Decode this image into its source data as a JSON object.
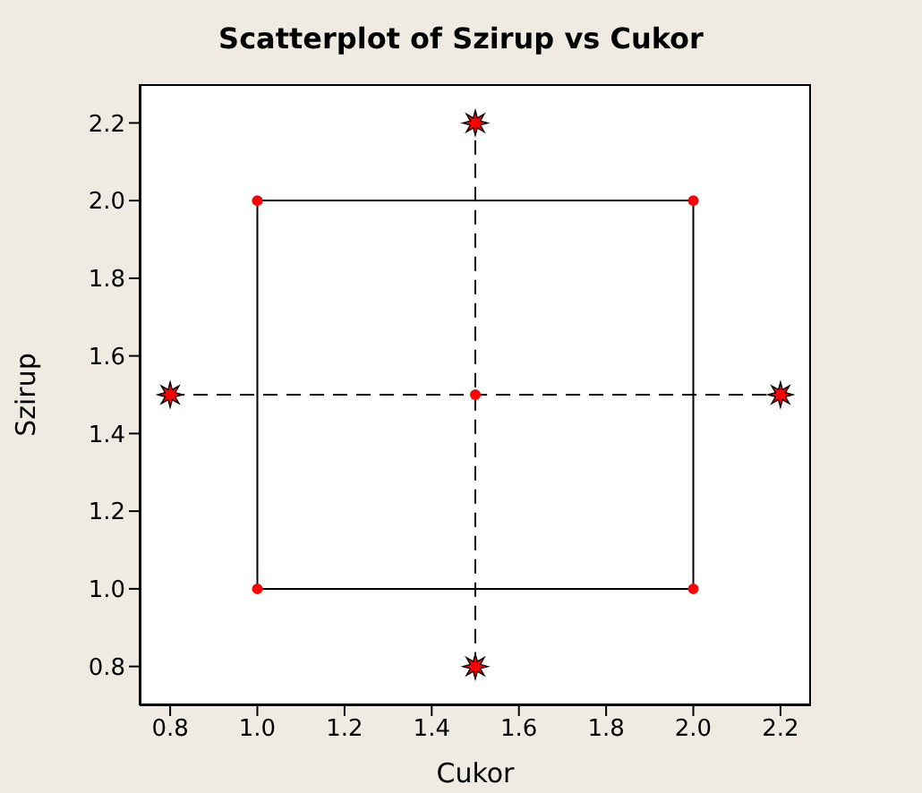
{
  "chart_data": {
    "type": "scatter",
    "title": "Scatterplot of Szirup vs Cukor",
    "xlabel": "Cukor",
    "ylabel": "Szirup",
    "xlim": [
      0.73,
      2.27
    ],
    "ylim": [
      0.7,
      2.3
    ],
    "xticks": [
      {
        "value": 0.8,
        "label": "0.8"
      },
      {
        "value": 1.0,
        "label": "1.0"
      },
      {
        "value": 1.2,
        "label": "1.2"
      },
      {
        "value": 1.4,
        "label": "1.4"
      },
      {
        "value": 1.6,
        "label": "1.6"
      },
      {
        "value": 1.8,
        "label": "1.8"
      },
      {
        "value": 2.0,
        "label": "2.0"
      },
      {
        "value": 2.2,
        "label": "2.2"
      }
    ],
    "yticks": [
      {
        "value": 0.8,
        "label": "0.8"
      },
      {
        "value": 1.0,
        "label": "1.0"
      },
      {
        "value": 1.2,
        "label": "1.2"
      },
      {
        "value": 1.4,
        "label": "1.4"
      },
      {
        "value": 1.6,
        "label": "1.6"
      },
      {
        "value": 1.8,
        "label": "1.8"
      },
      {
        "value": 2.0,
        "label": "2.0"
      },
      {
        "value": 2.2,
        "label": "2.2"
      }
    ],
    "grid": false,
    "legend": false,
    "series": [
      {
        "type": "line",
        "color": "#000000",
        "line_style": "solid",
        "marker": "none",
        "x": [
          1,
          2
        ],
        "values": [
          1,
          1
        ]
      },
      {
        "type": "line",
        "color": "#000000",
        "line_style": "solid",
        "marker": "none",
        "x": [
          2,
          2
        ],
        "values": [
          1,
          2
        ]
      },
      {
        "type": "line",
        "color": "#000000",
        "line_style": "solid",
        "marker": "none",
        "x": [
          1,
          2
        ],
        "values": [
          2,
          2
        ]
      },
      {
        "type": "line",
        "color": "#000000",
        "line_style": "solid",
        "marker": "none",
        "x": [
          1,
          1
        ],
        "values": [
          1,
          2
        ]
      },
      {
        "type": "line",
        "color": "#000000",
        "line_style": "dashed",
        "marker": "none",
        "x": [
          0.8,
          2.2
        ],
        "values": [
          1.5,
          1.5
        ]
      },
      {
        "type": "line",
        "color": "#000000",
        "line_style": "dashed",
        "marker": "none",
        "x": [
          1.5,
          1.5
        ],
        "values": [
          0.8,
          2.2
        ]
      },
      {
        "color": "#ff0000",
        "marker": "circle",
        "x": [
          1,
          1,
          2,
          2,
          1.5
        ],
        "values": [
          1,
          2,
          1,
          2,
          1.5
        ]
      },
      {
        "color": "#ff0000",
        "marker": "star",
        "x": [
          0.8,
          2.2,
          1.5,
          1.5
        ],
        "values": [
          1.5,
          1.5,
          0.8,
          2.2
        ]
      }
    ]
  }
}
